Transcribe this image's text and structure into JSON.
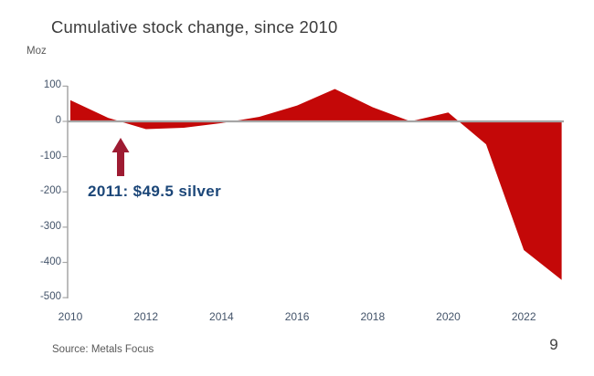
{
  "slide": {
    "title": "Cumulative stock change, since 2010",
    "unit_label": "Moz",
    "annotation_label": "2011: $49.5 silver",
    "source_label": "Source: Metals Focus",
    "page_number": "9"
  },
  "colors": {
    "area_fill": "#C40808",
    "arrow": "#9E1B32",
    "annotation_text": "#1B4678",
    "axis_line": "#A6A6A6",
    "zero_line": "#A6A6A6",
    "title_text": "#3C3C3C",
    "tick_text": "#44546A",
    "source_text": "#595959"
  },
  "chart_data": {
    "type": "area",
    "title": "Cumulative stock change, since 2010",
    "ylabel": "Moz",
    "x": [
      2010,
      2011,
      2012,
      2013,
      2014,
      2015,
      2016,
      2017,
      2018,
      2019,
      2020,
      2021,
      2022,
      2023
    ],
    "values": [
      60,
      10,
      -22,
      -18,
      -5,
      13,
      45,
      92,
      40,
      0,
      25,
      -65,
      -365,
      -450
    ],
    "baseline": 0,
    "ylim": [
      -500,
      100
    ],
    "yticks": [
      100,
      0,
      -100,
      -200,
      -300,
      -400,
      -500
    ],
    "xticks": [
      2010,
      2012,
      2014,
      2016,
      2018,
      2020,
      2022
    ],
    "grid": false,
    "legend": false,
    "annotations": [
      {
        "text": "2011: $49.5 silver",
        "arrow": "up",
        "near_x": 2011.3
      }
    ]
  }
}
